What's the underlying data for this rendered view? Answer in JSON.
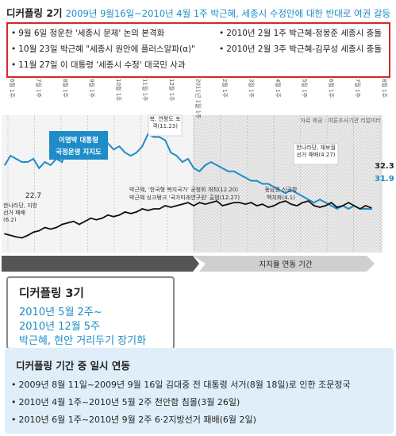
{
  "header": {
    "title": "디커플링 2기",
    "subtitle": "2009년 9월16일~2010년 4월 1주 박근혜, 세종시 수정안에 대한 반대로 여권 갈등",
    "events_left": [
      "9월 6일 정운찬 '세종시 문제' 논의 본격화",
      "10월 23일 박근혜 \"세종시 원안에 플러스알파(α)\"",
      "11월 27일 이 대통령 '세종시 수정' 대국민 사과"
    ],
    "events_right": [
      "2010년 2월 1주 박근혜-정몽준 세종시 충돌",
      "2010년 2월 3주 박근혜-김무성 세종시 충돌"
    ]
  },
  "chart_data": {
    "type": "line",
    "x_tick_labels": [
      "6월 1주",
      "7월 1주",
      "8월 1주",
      "9월 1주",
      "10월 1주",
      "11월 1주",
      "12월 1주",
      "2011년 1월 1주",
      "2월 1주",
      "3월 1주",
      "4월 1주",
      "5월 1주",
      "6월 1주",
      "7월 1주",
      "8월 1주"
    ],
    "series": [
      {
        "name": "이명박 대통령 국정운영 지지도",
        "color": "#1d8cc8",
        "values": [
          46,
          49,
          48,
          47,
          47,
          48,
          45,
          47,
          46,
          48,
          47,
          53,
          56,
          55,
          55,
          54,
          53,
          52,
          53,
          51,
          52,
          50,
          49,
          50,
          52,
          56,
          55,
          55,
          54,
          50,
          49,
          47,
          48,
          45,
          44,
          46,
          47,
          46,
          45,
          44,
          44,
          43,
          42,
          41,
          41,
          40,
          40,
          39,
          38,
          37,
          38,
          37,
          36,
          35,
          34,
          35,
          34,
          33,
          32,
          33,
          32,
          33,
          32,
          32,
          31.9
        ]
      },
      {
        "name": "박근혜",
        "color": "#111111",
        "values": [
          24,
          23.5,
          23,
          22.7,
          23.5,
          24.5,
          25,
          26,
          25.5,
          26,
          27,
          27.5,
          28,
          27,
          28,
          29,
          28.5,
          29,
          30,
          29.5,
          30,
          31,
          30.5,
          31,
          32,
          31.5,
          32,
          32,
          33,
          32.5,
          33,
          33.5,
          34,
          33,
          34,
          33.5,
          34,
          34.5,
          33,
          33.5,
          34,
          34,
          33.5,
          34,
          33,
          33.5,
          32.5,
          33,
          34,
          34.5,
          33.5,
          33,
          34,
          34.5,
          33,
          32.5,
          33,
          34,
          32.5,
          33,
          34,
          33,
          32,
          33,
          32.3
        ]
      }
    ],
    "x_range": [
      0,
      64
    ],
    "y_range": [
      18,
      62
    ],
    "start_label": "22.7",
    "end_labels": [
      "32.3",
      "31.9"
    ],
    "source": "자료 제공 : 여론조사기관 리얼미터",
    "annotations": {
      "n1": "북, 연평도 포격(11.23)",
      "n2": "한나라당, 재보궐 선거 패배(4.27)",
      "n3": "한나라당, 지방선거 패배(6.2)",
      "n4a": "박근혜, '한국형 복지국가' 공청회 개최(12.20)",
      "n4b": "박근혜 싱크탱크 '국가미래연구원' 출범(12.27)",
      "n5": "동남권 신공항 백지화(4.1)"
    },
    "band_label": "지지율 연동 기간"
  },
  "card3": {
    "title": "디커플링 3기",
    "line1": "2010년 5월 2주~",
    "line2": "2010년 12월 5주",
    "line3": "박근혜, 현안 거리두기 장기화"
  },
  "panel": {
    "title": "디커플링 기간 중 일시 연동",
    "items": [
      "2009년 8월 11일~2009년 9월 16일 김대중 전 대통령 서거(8월 18일)로 인한 조문정국",
      "2010년 4월 1주~2010년 5월 2주 천안함 침몰(3월 26일)",
      "2010년 6월 1주~2010년 9월 2주 6·2지방선거 패배(6월 2일)"
    ]
  }
}
